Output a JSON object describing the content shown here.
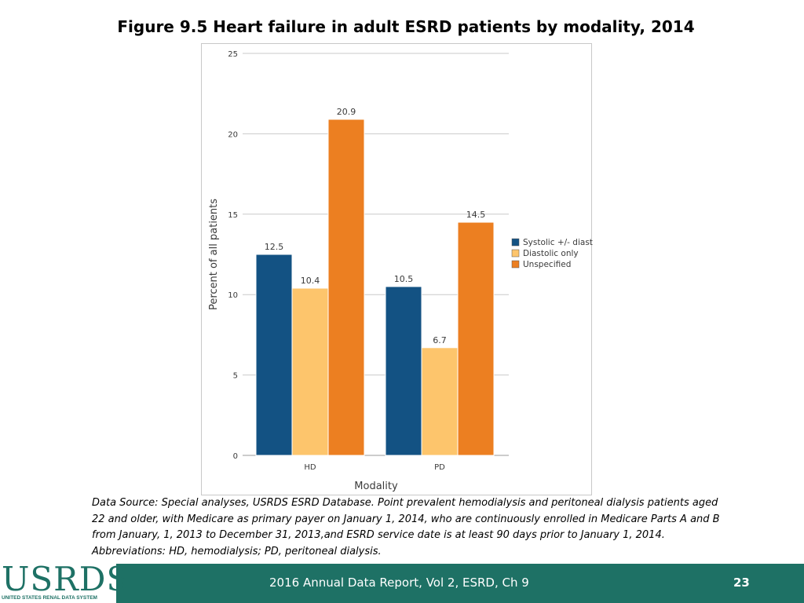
{
  "slide": {
    "title": "Figure 9.5 Heart failure in adult ESRD patients by modality, 2014",
    "footnote": "Data Source: Special analyses, USRDS ESRD Database. Point prevalent hemodialysis and peritoneal dialysis patients aged 22 and older, with Medicare as primary payer on January 1, 2014, who are continuously enrolled in Medicare Parts A and B from January, 1, 2013 to December 31, 2013,and ESRD service date is at least 90 days prior to January 1, 2014. Abbreviations: HD, hemodialysis; PD, peritoneal dialysis."
  },
  "footer": {
    "logo_text": "USRDS",
    "logo_subtitle": "UNITED STATES RENAL DATA SYSTEM",
    "report_text": "2016 Annual Data Report, Vol 2, ESRD, Ch 9",
    "page_number": "23"
  },
  "colors": {
    "systolic": "#135283",
    "diastolic": "#fdc56c",
    "unspecified": "#ec7f21",
    "footer_bg": "#1e7165"
  },
  "chart_data": {
    "type": "bar",
    "title": "Figure 9.5 Heart failure in adult ESRD patients by modality, 2014",
    "xlabel": "Modality",
    "ylabel": "Percent of all patients",
    "categories": [
      "HD",
      "PD"
    ],
    "ylim": [
      0,
      25
    ],
    "yticks": [
      0,
      5,
      10,
      15,
      20,
      25
    ],
    "grid": true,
    "legend_position": "right",
    "series": [
      {
        "name": "Systolic +/- diastolic",
        "values": [
          12.5,
          10.5
        ],
        "color": "#135283"
      },
      {
        "name": "Diastolic only",
        "values": [
          10.4,
          6.7
        ],
        "color": "#fdc56c"
      },
      {
        "name": "Unspecified",
        "values": [
          20.9,
          14.5
        ],
        "color": "#ec7f21"
      }
    ]
  }
}
